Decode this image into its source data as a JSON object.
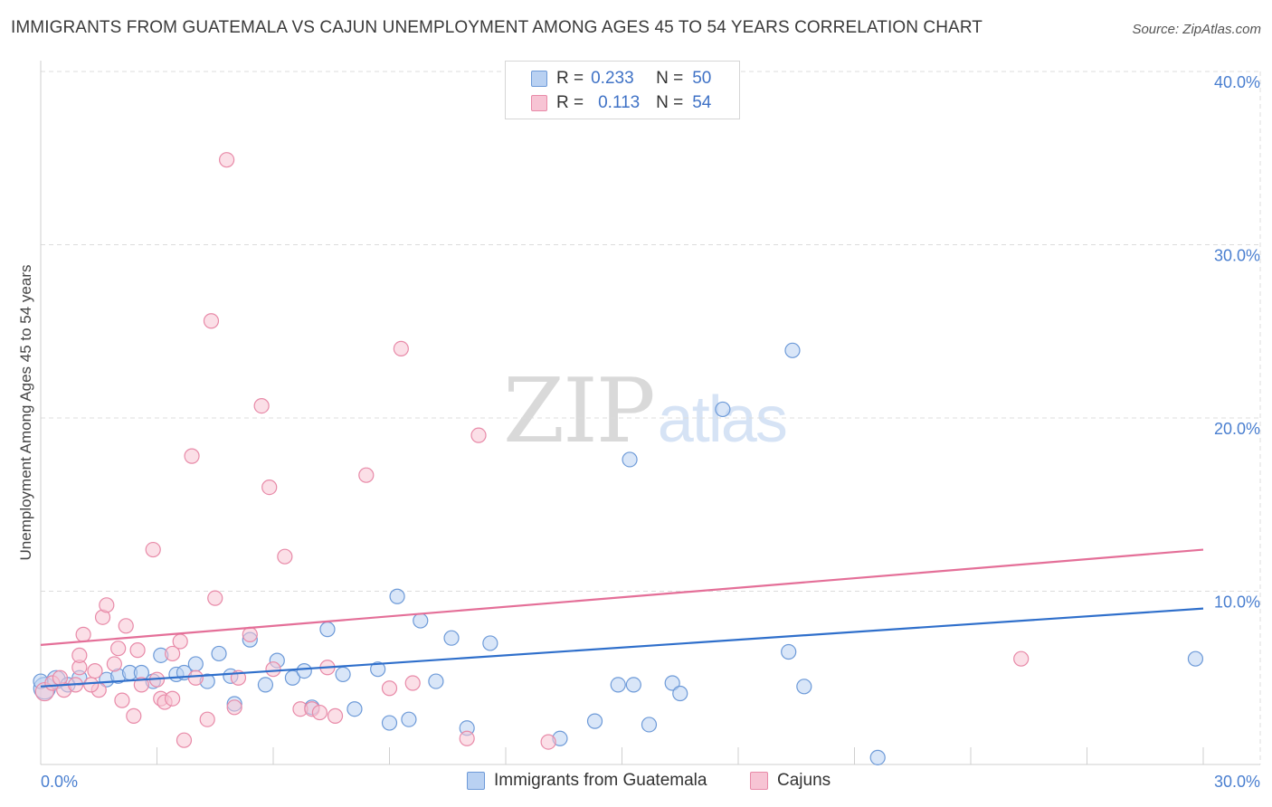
{
  "title": "IMMIGRANTS FROM GUATEMALA VS CAJUN UNEMPLOYMENT AMONG AGES 45 TO 54 YEARS CORRELATION CHART",
  "source": "Source: ZipAtlas.com",
  "watermark": {
    "zip": "ZIP",
    "atlas": "atlas"
  },
  "legend": {
    "rows": [
      {
        "r_label": "R =",
        "r_value": "0.233",
        "n_label": "N =",
        "n_value": "50"
      },
      {
        "r_label": "R =",
        "r_value": "0.113",
        "n_label": "N =",
        "n_value": "54"
      }
    ]
  },
  "bottom_legend": {
    "series_a": "Immigrants from Guatemala",
    "series_b": "Cajuns"
  },
  "colors": {
    "blue_fill": "#b9d1f2",
    "blue_stroke": "#6d9ad8",
    "blue_line": "#2f6fcb",
    "pink_fill": "#f7c4d4",
    "pink_stroke": "#e88aa8",
    "pink_line": "#e46f98",
    "grid": "#dcdcdc",
    "tick_text": "#4a7fd0"
  },
  "chart_data": {
    "type": "scatter",
    "title": "IMMIGRANTS FROM GUATEMALA VS CAJUN UNEMPLOYMENT AMONG AGES 45 TO 54 YEARS CORRELATION CHART",
    "xlabel": "",
    "ylabel": "Unemployment Among Ages 45 to 54 years",
    "xlim": [
      0,
      30
    ],
    "ylim": [
      0,
      40
    ],
    "x_tick_labels": [
      "0.0%",
      "30.0%"
    ],
    "y_ticks": [
      10,
      20,
      30,
      40
    ],
    "y_tick_labels": [
      "10.0%",
      "20.0%",
      "30.0%",
      "40.0%"
    ],
    "series": [
      {
        "name": "Immigrants from Guatemala",
        "color": "blue",
        "trend": {
          "x0": 0,
          "y0": 4.5,
          "x1": 30,
          "y1": 9.0
        },
        "points": [
          [
            0.1,
            4.4,
            3
          ],
          [
            0.4,
            4.9,
            2
          ],
          [
            0.7,
            4.6,
            1
          ],
          [
            1.0,
            5.0,
            1
          ],
          [
            1.7,
            4.9,
            1
          ],
          [
            2.0,
            5.1,
            1
          ],
          [
            2.3,
            5.3,
            1
          ],
          [
            2.6,
            5.3,
            1
          ],
          [
            2.9,
            4.8,
            1
          ],
          [
            3.1,
            6.3,
            1
          ],
          [
            3.5,
            5.2,
            1
          ],
          [
            3.7,
            5.3,
            1
          ],
          [
            4.0,
            5.8,
            1
          ],
          [
            4.3,
            4.8,
            1
          ],
          [
            4.6,
            6.4,
            1
          ],
          [
            4.9,
            5.1,
            1
          ],
          [
            5.0,
            3.5,
            1
          ],
          [
            5.4,
            7.2,
            1
          ],
          [
            5.8,
            4.6,
            1
          ],
          [
            6.1,
            6.0,
            1
          ],
          [
            6.5,
            5.0,
            1
          ],
          [
            6.8,
            5.4,
            1
          ],
          [
            7.0,
            3.3,
            1
          ],
          [
            7.4,
            7.8,
            1
          ],
          [
            7.8,
            5.2,
            1
          ],
          [
            8.1,
            3.2,
            1
          ],
          [
            8.7,
            5.5,
            1
          ],
          [
            9.0,
            2.4,
            1
          ],
          [
            9.2,
            9.7,
            1
          ],
          [
            9.5,
            2.6,
            1
          ],
          [
            9.8,
            8.3,
            1
          ],
          [
            10.2,
            4.8,
            1
          ],
          [
            10.6,
            7.3,
            1
          ],
          [
            11.0,
            2.1,
            1
          ],
          [
            11.6,
            7.0,
            1
          ],
          [
            13.4,
            1.5,
            1
          ],
          [
            14.3,
            2.5,
            1
          ],
          [
            14.9,
            4.6,
            1
          ],
          [
            15.2,
            17.6,
            1
          ],
          [
            15.3,
            4.6,
            1
          ],
          [
            15.7,
            2.3,
            1
          ],
          [
            16.3,
            4.7,
            1
          ],
          [
            16.5,
            4.1,
            1
          ],
          [
            17.6,
            20.5,
            1
          ],
          [
            19.3,
            6.5,
            1
          ],
          [
            19.4,
            23.9,
            1
          ],
          [
            19.7,
            4.5,
            1
          ],
          [
            21.6,
            0.4,
            1
          ],
          [
            29.8,
            6.1,
            1
          ],
          [
            0.0,
            4.8,
            1
          ]
        ]
      },
      {
        "name": "Cajuns",
        "color": "pink",
        "trend": {
          "x0": 0,
          "y0": 6.9,
          "x1": 30,
          "y1": 12.4
        },
        "points": [
          [
            0.1,
            4.2,
            2
          ],
          [
            0.3,
            4.7,
            1
          ],
          [
            0.6,
            4.3,
            1
          ],
          [
            0.9,
            4.6,
            1
          ],
          [
            1.0,
            5.6,
            1
          ],
          [
            1.0,
            6.3,
            1
          ],
          [
            1.1,
            7.5,
            1
          ],
          [
            1.4,
            5.4,
            1
          ],
          [
            1.5,
            4.3,
            1
          ],
          [
            1.6,
            8.5,
            1
          ],
          [
            1.7,
            9.2,
            1
          ],
          [
            1.9,
            5.8,
            1
          ],
          [
            2.0,
            6.7,
            1
          ],
          [
            2.1,
            3.7,
            1
          ],
          [
            2.2,
            8.0,
            1
          ],
          [
            2.4,
            2.8,
            1
          ],
          [
            2.5,
            6.6,
            1
          ],
          [
            2.6,
            4.6,
            1
          ],
          [
            2.9,
            12.4,
            1
          ],
          [
            3.0,
            4.9,
            1
          ],
          [
            3.1,
            3.8,
            1
          ],
          [
            3.2,
            3.6,
            1
          ],
          [
            3.4,
            6.4,
            1
          ],
          [
            3.4,
            3.8,
            1
          ],
          [
            3.6,
            7.1,
            1
          ],
          [
            3.7,
            1.4,
            1
          ],
          [
            3.9,
            17.8,
            1
          ],
          [
            4.0,
            5.0,
            1
          ],
          [
            4.3,
            2.6,
            1
          ],
          [
            4.4,
            25.6,
            1
          ],
          [
            4.5,
            9.6,
            1
          ],
          [
            4.8,
            34.9,
            1
          ],
          [
            5.0,
            3.3,
            1
          ],
          [
            5.1,
            5.0,
            1
          ],
          [
            5.4,
            7.5,
            1
          ],
          [
            5.7,
            20.7,
            1
          ],
          [
            5.9,
            16.0,
            1
          ],
          [
            6.0,
            5.5,
            1
          ],
          [
            6.3,
            12.0,
            1
          ],
          [
            6.7,
            3.2,
            1
          ],
          [
            7.0,
            3.2,
            1
          ],
          [
            7.2,
            3.0,
            1
          ],
          [
            7.4,
            5.6,
            1
          ],
          [
            7.6,
            2.8,
            1
          ],
          [
            8.4,
            16.7,
            1
          ],
          [
            9.0,
            4.4,
            1
          ],
          [
            9.3,
            24.0,
            1
          ],
          [
            9.6,
            4.7,
            1
          ],
          [
            11.0,
            1.5,
            1
          ],
          [
            11.3,
            19.0,
            1
          ],
          [
            13.1,
            1.3,
            1
          ],
          [
            25.3,
            6.1,
            1
          ],
          [
            0.5,
            5.0,
            1
          ],
          [
            1.3,
            4.6,
            1
          ]
        ]
      }
    ]
  }
}
